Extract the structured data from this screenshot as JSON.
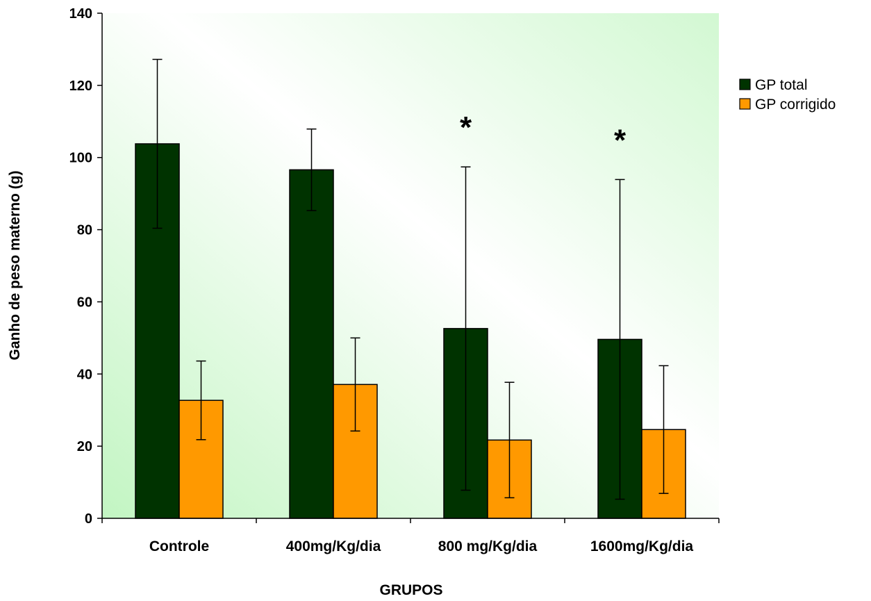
{
  "chart_data": {
    "type": "bar",
    "title": "",
    "xlabel": "GRUPOS",
    "ylabel": "Ganho de peso materno (g)",
    "ylim": [
      0,
      140
    ],
    "yticks": [
      0,
      20,
      40,
      60,
      80,
      100,
      120,
      140
    ],
    "categories": [
      "Controle",
      "400mg/Kg/dia",
      "800 mg/Kg/dia",
      "1600mg/Kg/dia"
    ],
    "series": [
      {
        "name": "GP total",
        "color": "#003300",
        "values": [
          103.8,
          96.6,
          52.6,
          49.6
        ],
        "errors": [
          23.4,
          11.3,
          44.8,
          44.3
        ]
      },
      {
        "name": "GP corrigido",
        "color": "#FF9900",
        "values": [
          32.7,
          37.1,
          21.7,
          24.6
        ],
        "errors": [
          10.9,
          12.9,
          16.0,
          17.7
        ]
      }
    ],
    "annotations": [
      {
        "category_index": 2,
        "text": "*"
      },
      {
        "category_index": 3,
        "text": "*"
      }
    ],
    "grid": false,
    "legend_position": "right",
    "plot_background": "gradient green-to-white"
  }
}
